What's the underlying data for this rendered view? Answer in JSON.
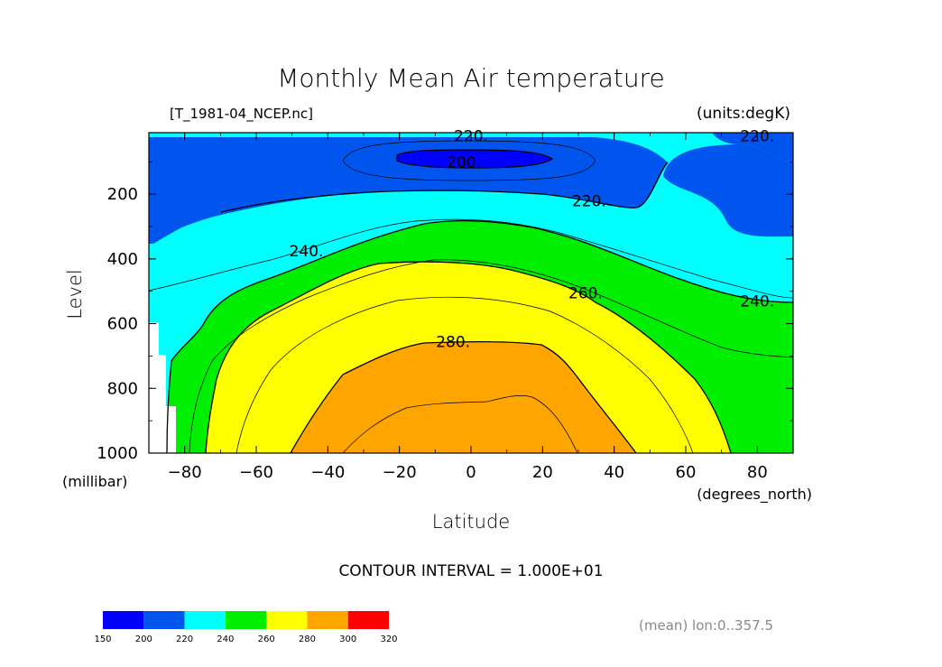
{
  "chart_data": {
    "type": "contour",
    "title": "Monthly Mean Air temperature",
    "dataset_label": "[T_1981-04_NCEP.nc]",
    "units_label": "(units:degK)",
    "xlabel": "Latitude",
    "xunits": "(degrees_north)",
    "ylabel": "Level",
    "yunits": "(millibar)",
    "x_range": [
      -90,
      90
    ],
    "x_ticks": [
      -80,
      -60,
      -40,
      -20,
      0,
      20,
      40,
      60,
      80
    ],
    "x_tick_labels": [
      "−80",
      "−60",
      "−40",
      "−20",
      "0",
      "20",
      "40",
      "60",
      "80"
    ],
    "y_range": [
      1000,
      10
    ],
    "y_ticks": [
      200,
      400,
      600,
      800,
      1000
    ],
    "y_tick_labels": [
      "200",
      "400",
      "600",
      "800",
      "1000"
    ],
    "contour_interval_text": "CONTOUR INTERVAL = 1.000E+01",
    "contour_labels": [
      {
        "text": "220.",
        "x": 0,
        "y": 20
      },
      {
        "text": "200.",
        "x": -2,
        "y": 100
      },
      {
        "text": "220.",
        "x": 80,
        "y": 20
      },
      {
        "text": "220.",
        "x": 33,
        "y": 220
      },
      {
        "text": "240.",
        "x": -46,
        "y": 375
      },
      {
        "text": "240.",
        "x": 80,
        "y": 530
      },
      {
        "text": "260.",
        "x": 32,
        "y": 505
      },
      {
        "text": "280.",
        "x": -5,
        "y": 655
      }
    ],
    "contour_levels": [
      200,
      220,
      240,
      260,
      280
    ],
    "colorbar": {
      "ticks": [
        "150",
        "200",
        "220",
        "240",
        "260",
        "280",
        "300",
        "320"
      ],
      "colors": [
        "#0000ff",
        "#0055ee",
        "#00ffff",
        "#00ee00",
        "#ffff00",
        "#ffa500",
        "#ff0000"
      ]
    },
    "mean_note": "(mean) lon:0..357.5"
  }
}
